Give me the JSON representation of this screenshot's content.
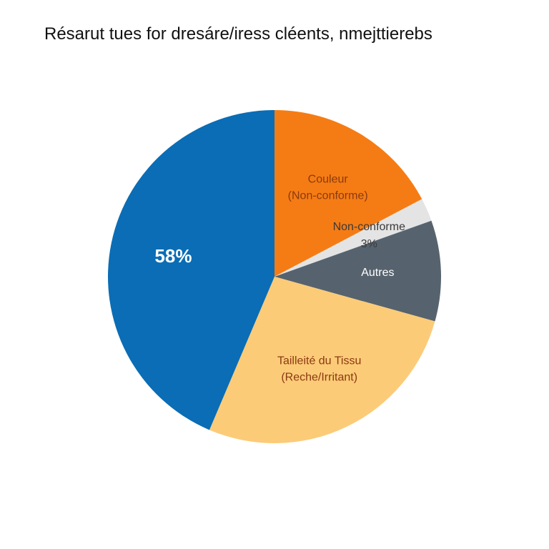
{
  "chart_data": {
    "type": "pie",
    "title": "Résarut tues for dresáre/iress cléents, nmejttierebs",
    "categories": [
      "Couleur\n(Non-conforme)",
      "Non-conforme",
      "Autres",
      "Tailleité du Tissu\n(Reche/Irritant)",
      null
    ],
    "values": [
      23,
      3,
      13,
      36,
      58
    ],
    "value_labels": [
      null,
      "3%",
      null,
      null,
      "58%"
    ],
    "colors": [
      "#f57c14",
      "#e4e4e4",
      "#56636f",
      "#fccb78",
      "#0a6db5"
    ],
    "label_colors": [
      "#8a3a10",
      "#3a3a3a",
      "#ffffff",
      "#8a3a10",
      "#ffffff"
    ]
  }
}
